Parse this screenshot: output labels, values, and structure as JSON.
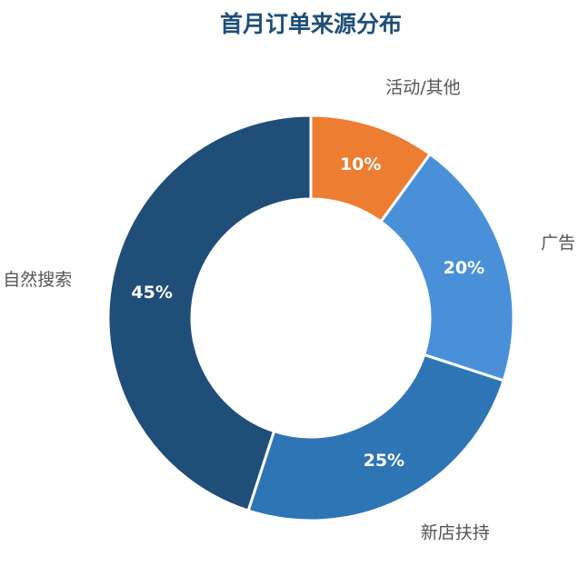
{
  "chart_data": {
    "type": "donut",
    "title": "首月订单来源分布",
    "categories": [
      "活动/其他",
      "广告",
      "新店扶持",
      "自然搜索"
    ],
    "values": [
      10,
      20,
      25,
      45
    ],
    "value_labels": [
      "10%",
      "20%",
      "25%",
      "45%"
    ],
    "colors": [
      "#ed7d31",
      "#4a90d9",
      "#2e75b6",
      "#1f4e79"
    ]
  }
}
